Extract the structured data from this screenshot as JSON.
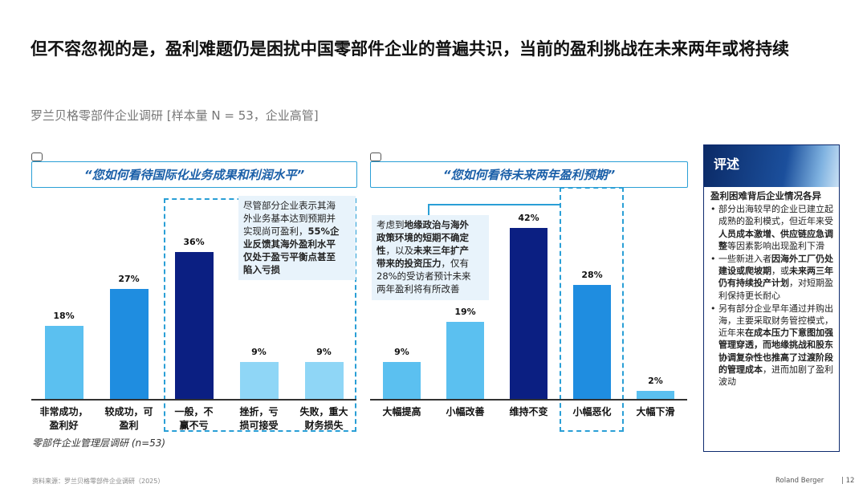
{
  "title": "但不容忽视的是，盈利难题仍是困扰中国零部件企业的普遍共识，当前的盈利挑战在未来两年或将持续",
  "subtitle": "罗兰贝格零部件企业调研 [样本量 N = 53，企业高管]",
  "colors": {
    "light_blue": "#5bc0f0",
    "mid_blue": "#1f8de0",
    "navy": "#0b1f82",
    "pale_blue": "#8fd6f6",
    "accent": "#2a9fd6"
  },
  "chart_data": [
    {
      "type": "bar",
      "question": "“您如何看待国际化业务成果和利润水平”",
      "categories": [
        "非常成功，盈利好",
        "较成功，可盈利",
        "一般，不赢不亏",
        "挫折，亏损可接受",
        "失败，重大财务损失"
      ],
      "category_lines": [
        [
          "非常成功，",
          "盈利好"
        ],
        [
          "较成功，可",
          "盈利"
        ],
        [
          "一般，不",
          "赢不亏"
        ],
        [
          "挫折，亏",
          "损可接受"
        ],
        [
          "失败，重大",
          "财务损失"
        ]
      ],
      "values": [
        18,
        27,
        36,
        9,
        9
      ],
      "value_labels": [
        "18%",
        "27%",
        "36%",
        "9%",
        "9%"
      ],
      "bar_colors": [
        "#5bc0f0",
        "#1f8de0",
        "#0b1f82",
        "#8fd6f6",
        "#8fd6f6"
      ],
      "ylim": [
        0,
        42
      ],
      "note_lines": [
        [
          {
            "t": "尽管部分企业表示其海"
          }
        ],
        [
          {
            "t": "外业务基本达到预期并"
          }
        ],
        [
          {
            "t": "实现尚可盈利，"
          },
          {
            "t": "55%企",
            "b": true
          }
        ],
        [
          {
            "t": "业反馈其海外盈利水平",
            "b": true
          }
        ],
        [
          {
            "t": "仅处于盈亏平衡点甚至",
            "b": true
          }
        ],
        [
          {
            "t": "陷入亏损",
            "b": true
          }
        ]
      ]
    },
    {
      "type": "bar",
      "question": "“您如何看待未来两年盈利预期”",
      "categories": [
        "大幅提高",
        "小幅改善",
        "维持不变",
        "小幅恶化",
        "大幅下滑"
      ],
      "category_lines": [
        [
          "大幅提高"
        ],
        [
          "小幅改善"
        ],
        [
          "维持不变"
        ],
        [
          "小幅恶化"
        ],
        [
          "大幅下滑"
        ]
      ],
      "values": [
        9,
        19,
        42,
        28,
        2
      ],
      "value_labels": [
        "9%",
        "19%",
        "42%",
        "28%",
        "2%"
      ],
      "bar_colors": [
        "#5bc0f0",
        "#5bc0f0",
        "#0b1f82",
        "#1f8de0",
        "#5bc0f0"
      ],
      "ylim": [
        0,
        42
      ],
      "note_lines": [
        [
          {
            "t": "考虑到"
          },
          {
            "t": "地缘政治与海外",
            "b": true
          }
        ],
        [
          {
            "t": "政策环境的短期不确定",
            "b": true
          }
        ],
        [
          {
            "t": "性",
            "b": true
          },
          {
            "t": "，以及"
          },
          {
            "t": "未来三年扩产",
            "b": true
          }
        ],
        [
          {
            "t": "带来的投资压力",
            "b": true
          },
          {
            "t": "，仅有"
          }
        ],
        [
          {
            "t": "28%的受访者预计未来"
          }
        ],
        [
          {
            "t": "两年盈利将有所改善"
          }
        ]
      ]
    }
  ],
  "footnote": "零部件企业管理层调研 (n=53)",
  "source": "资料来源：罗兰贝格零部件企业调研（2025）",
  "brand": "Roland Berger",
  "page_number": "| 12",
  "panel": {
    "title": "评述",
    "heading": "盈利困难背后企业情况各异",
    "items": [
      [
        {
          "t": "部分出海较早的企业已建立起成熟的盈利模式，但近年来受"
        },
        {
          "t": "人员成本激增、供应链应急调整",
          "b": true
        },
        {
          "t": "等因素影响出现盈利下滑"
        }
      ],
      [
        {
          "t": "一些新进入者"
        },
        {
          "t": "因海外工厂仍处建设或爬坡期",
          "b": true
        },
        {
          "t": "，或"
        },
        {
          "t": "未来两三年仍有持续投产计划",
          "b": true
        },
        {
          "t": "，对短期盈利保持更长耐心"
        }
      ],
      [
        {
          "t": "另有部分企业早年通过并购出海，主要采取财务管控模式，近年来"
        },
        {
          "t": "在成本压力下意图加强管理穿透，而地缘挑战和股东协调复杂性也推高了过渡阶段的管理成本",
          "b": true
        },
        {
          "t": "，进而加剧了盈利波动"
        }
      ]
    ]
  }
}
